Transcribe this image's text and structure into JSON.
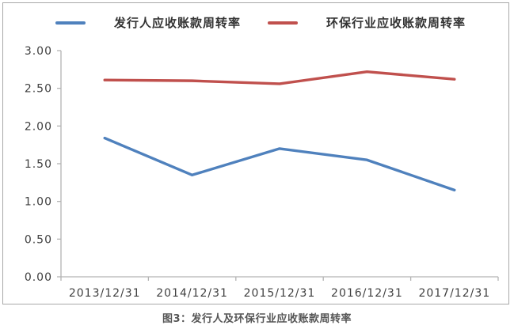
{
  "chart_data": {
    "type": "line",
    "title": "",
    "categories": [
      "2013/12/31",
      "2014/12/31",
      "2015/12/31",
      "2016/12/31",
      "2017/12/31"
    ],
    "series": [
      {
        "name": "发行人应收账款周转率",
        "color": "#4f81bd",
        "values": [
          1.84,
          1.35,
          1.7,
          1.55,
          1.15
        ]
      },
      {
        "name": "环保行业应收账款周转率",
        "color": "#c0504d",
        "values": [
          2.61,
          2.6,
          2.56,
          2.72,
          2.62
        ]
      }
    ],
    "xlabel": "",
    "ylabel": "",
    "ylim": [
      0,
      3
    ],
    "y_ticks": [
      0,
      0.5,
      1,
      1.5,
      2,
      2.5,
      3
    ],
    "y_tick_labels": [
      "0.00",
      "0.50",
      "1.00",
      "1.50",
      "2.00",
      "2.50",
      "3.00"
    ],
    "grid": false,
    "legend_position": "top-center"
  },
  "caption": "图3：发行人及环保行业应收账款周转率"
}
